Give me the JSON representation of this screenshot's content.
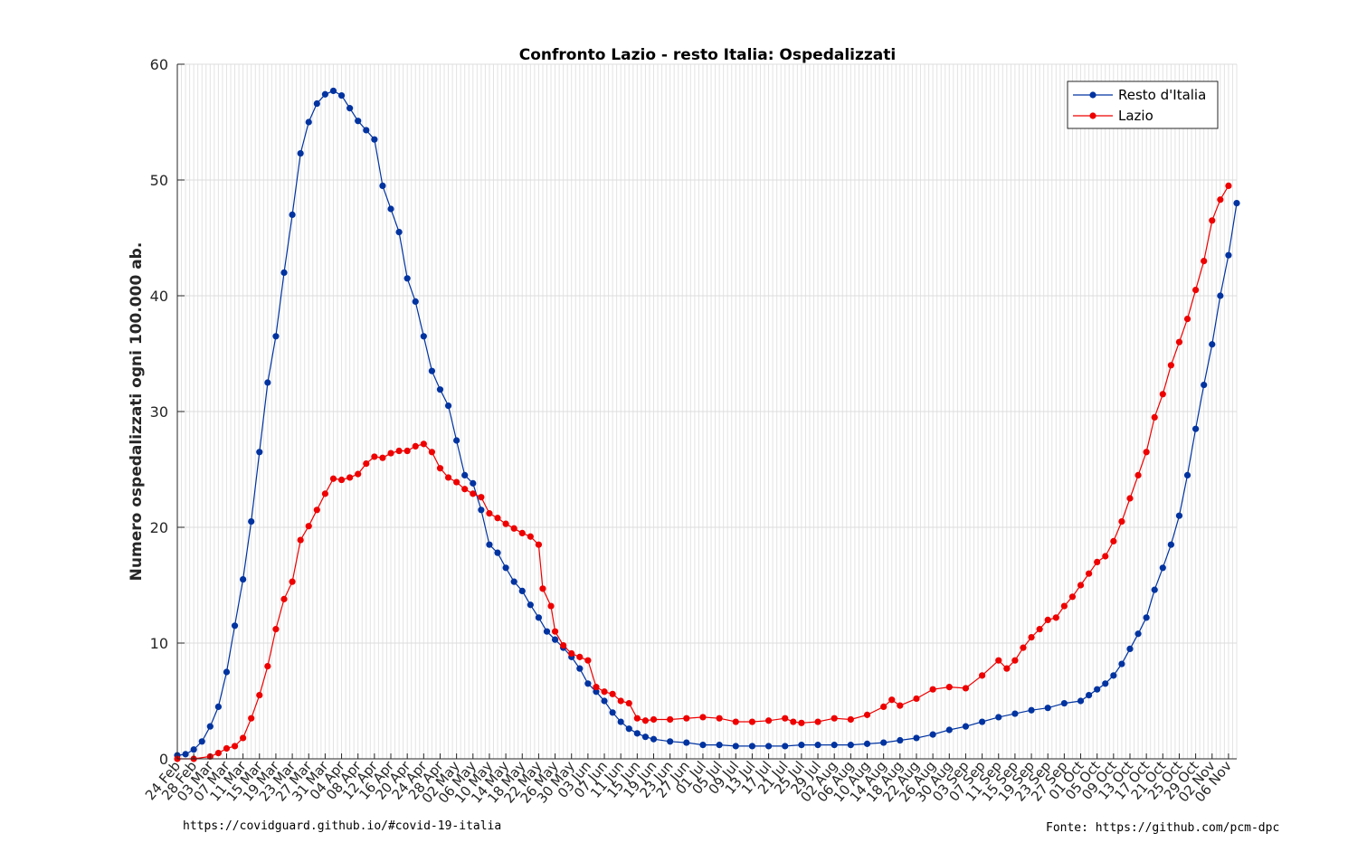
{
  "chart_data": {
    "type": "line",
    "title": "Confronto Lazio - resto Italia: Ospedalizzati",
    "xlabel": "",
    "ylabel": "Numero ospedalizzati ogni 100.000 ab.",
    "ylim": [
      0,
      60
    ],
    "yticks": [
      0,
      10,
      20,
      30,
      40,
      50,
      60
    ],
    "xlim_days": [
      0,
      258
    ],
    "grid": true,
    "legend_position": "top-right",
    "categories": [
      "24 Feb",
      "28 Feb",
      "03 Mar",
      "07 Mar",
      "11 Mar",
      "15 Mar",
      "19 Mar",
      "23 Mar",
      "27 Mar",
      "31 Mar",
      "04 Apr",
      "08 Apr",
      "12 Apr",
      "16 Apr",
      "20 Apr",
      "24 Apr",
      "28 Apr",
      "02 May",
      "06 May",
      "10 May",
      "14 May",
      "18 May",
      "22 May",
      "26 May",
      "30 May",
      "03 Jun",
      "07 Jun",
      "11 Jun",
      "15 Jun",
      "19 Jun",
      "23 Jun",
      "27 Jun",
      "01 Jul",
      "05 Jul",
      "09 Jul",
      "13 Jul",
      "17 Jul",
      "21 Jul",
      "25 Jul",
      "29 Jul",
      "02 Aug",
      "06 Aug",
      "10 Aug",
      "14 Aug",
      "18 Aug",
      "22 Aug",
      "26 Aug",
      "30 Aug",
      "03 Sep",
      "07 Sep",
      "11 Sep",
      "15 Sep",
      "19 Sep",
      "23 Sep",
      "27 Sep",
      "01 Oct",
      "05 Oct",
      "09 Oct",
      "13 Oct",
      "17 Oct",
      "21 Oct",
      "25 Oct",
      "29 Oct",
      "02 Nov",
      "06 Nov"
    ],
    "series": [
      {
        "name": "Resto d'Italia",
        "color": "#0033a0",
        "points": [
          [
            0,
            0.3
          ],
          [
            2,
            0.4
          ],
          [
            4,
            0.8
          ],
          [
            6,
            1.5
          ],
          [
            8,
            2.8
          ],
          [
            10,
            4.5
          ],
          [
            12,
            7.5
          ],
          [
            14,
            11.5
          ],
          [
            16,
            15.5
          ],
          [
            18,
            20.5
          ],
          [
            20,
            26.5
          ],
          [
            22,
            32.5
          ],
          [
            24,
            36.5
          ],
          [
            26,
            42
          ],
          [
            28,
            47
          ],
          [
            30,
            52.3
          ],
          [
            32,
            55
          ],
          [
            34,
            56.6
          ],
          [
            36,
            57.4
          ],
          [
            38,
            57.7
          ],
          [
            40,
            57.3
          ],
          [
            42,
            56.2
          ],
          [
            44,
            55.1
          ],
          [
            46,
            54.3
          ],
          [
            48,
            53.5
          ],
          [
            50,
            49.5
          ],
          [
            52,
            47.5
          ],
          [
            54,
            45.5
          ],
          [
            56,
            41.5
          ],
          [
            58,
            39.5
          ],
          [
            60,
            36.5
          ],
          [
            62,
            33.5
          ],
          [
            64,
            31.9
          ],
          [
            66,
            30.5
          ],
          [
            68,
            27.5
          ],
          [
            70,
            24.5
          ],
          [
            72,
            23.8
          ],
          [
            74,
            21.5
          ],
          [
            76,
            18.5
          ],
          [
            78,
            17.8
          ],
          [
            80,
            16.5
          ],
          [
            82,
            15.3
          ],
          [
            84,
            14.5
          ],
          [
            86,
            13.3
          ],
          [
            88,
            12.2
          ],
          [
            90,
            11
          ],
          [
            92,
            10.3
          ],
          [
            94,
            9.6
          ],
          [
            96,
            8.8
          ],
          [
            98,
            7.8
          ],
          [
            100,
            6.5
          ],
          [
            102,
            5.8
          ],
          [
            104,
            5
          ],
          [
            106,
            4
          ],
          [
            108,
            3.2
          ],
          [
            110,
            2.6
          ],
          [
            112,
            2.2
          ],
          [
            114,
            1.9
          ],
          [
            116,
            1.7
          ],
          [
            120,
            1.5
          ],
          [
            124,
            1.4
          ],
          [
            128,
            1.2
          ],
          [
            132,
            1.2
          ],
          [
            136,
            1.1
          ],
          [
            140,
            1.1
          ],
          [
            144,
            1.1
          ],
          [
            148,
            1.1
          ],
          [
            152,
            1.2
          ],
          [
            156,
            1.2
          ],
          [
            160,
            1.2
          ],
          [
            164,
            1.2
          ],
          [
            168,
            1.3
          ],
          [
            172,
            1.4
          ],
          [
            176,
            1.6
          ],
          [
            180,
            1.8
          ],
          [
            184,
            2.1
          ],
          [
            188,
            2.5
          ],
          [
            192,
            2.8
          ],
          [
            196,
            3.2
          ],
          [
            200,
            3.6
          ],
          [
            204,
            3.9
          ],
          [
            208,
            4.2
          ],
          [
            212,
            4.4
          ],
          [
            216,
            4.8
          ],
          [
            220,
            5
          ],
          [
            222,
            5.5
          ],
          [
            224,
            6
          ],
          [
            226,
            6.5
          ],
          [
            228,
            7.2
          ],
          [
            230,
            8.2
          ],
          [
            232,
            9.5
          ],
          [
            234,
            10.8
          ],
          [
            236,
            12.2
          ],
          [
            238,
            14.6
          ],
          [
            240,
            16.5
          ],
          [
            242,
            18.5
          ],
          [
            244,
            21
          ],
          [
            246,
            24.5
          ],
          [
            248,
            28.5
          ],
          [
            250,
            32.3
          ],
          [
            252,
            35.8
          ],
          [
            254,
            40
          ],
          [
            256,
            43.5
          ],
          [
            258,
            48
          ]
        ]
      },
      {
        "name": "Lazio",
        "color": "#ee0000",
        "points": [
          [
            0,
            0
          ],
          [
            4,
            0
          ],
          [
            8,
            0.2
          ],
          [
            10,
            0.5
          ],
          [
            12,
            0.9
          ],
          [
            14,
            1.1
          ],
          [
            16,
            1.8
          ],
          [
            18,
            3.5
          ],
          [
            20,
            5.5
          ],
          [
            22,
            8
          ],
          [
            24,
            11.2
          ],
          [
            26,
            13.8
          ],
          [
            28,
            15.3
          ],
          [
            30,
            18.9
          ],
          [
            32,
            20.1
          ],
          [
            34,
            21.5
          ],
          [
            36,
            22.9
          ],
          [
            38,
            24.2
          ],
          [
            40,
            24.1
          ],
          [
            42,
            24.3
          ],
          [
            44,
            24.6
          ],
          [
            46,
            25.5
          ],
          [
            48,
            26.1
          ],
          [
            50,
            26
          ],
          [
            52,
            26.4
          ],
          [
            54,
            26.6
          ],
          [
            56,
            26.6
          ],
          [
            58,
            27
          ],
          [
            60,
            27.2
          ],
          [
            62,
            26.5
          ],
          [
            64,
            25.1
          ],
          [
            66,
            24.3
          ],
          [
            68,
            23.9
          ],
          [
            70,
            23.3
          ],
          [
            72,
            22.9
          ],
          [
            74,
            22.6
          ],
          [
            76,
            21.2
          ],
          [
            78,
            20.8
          ],
          [
            80,
            20.3
          ],
          [
            82,
            19.9
          ],
          [
            84,
            19.5
          ],
          [
            86,
            19.2
          ],
          [
            88,
            18.5
          ],
          [
            89,
            14.7
          ],
          [
            91,
            13.2
          ],
          [
            92,
            11
          ],
          [
            94,
            9.8
          ],
          [
            96,
            9.1
          ],
          [
            98,
            8.8
          ],
          [
            100,
            8.5
          ],
          [
            102,
            6.2
          ],
          [
            104,
            5.8
          ],
          [
            106,
            5.6
          ],
          [
            108,
            5
          ],
          [
            110,
            4.8
          ],
          [
            112,
            3.5
          ],
          [
            114,
            3.3
          ],
          [
            116,
            3.4
          ],
          [
            120,
            3.4
          ],
          [
            124,
            3.5
          ],
          [
            128,
            3.6
          ],
          [
            132,
            3.5
          ],
          [
            136,
            3.2
          ],
          [
            140,
            3.2
          ],
          [
            144,
            3.3
          ],
          [
            148,
            3.5
          ],
          [
            150,
            3.2
          ],
          [
            152,
            3.1
          ],
          [
            156,
            3.2
          ],
          [
            160,
            3.5
          ],
          [
            164,
            3.4
          ],
          [
            168,
            3.8
          ],
          [
            172,
            4.5
          ],
          [
            174,
            5.1
          ],
          [
            176,
            4.6
          ],
          [
            180,
            5.2
          ],
          [
            184,
            6
          ],
          [
            188,
            6.2
          ],
          [
            192,
            6.1
          ],
          [
            196,
            7.2
          ],
          [
            200,
            8.5
          ],
          [
            202,
            7.8
          ],
          [
            204,
            8.5
          ],
          [
            206,
            9.6
          ],
          [
            208,
            10.5
          ],
          [
            210,
            11.2
          ],
          [
            212,
            12
          ],
          [
            214,
            12.2
          ],
          [
            216,
            13.2
          ],
          [
            218,
            14
          ],
          [
            220,
            15
          ],
          [
            222,
            16
          ],
          [
            224,
            17
          ],
          [
            226,
            17.5
          ],
          [
            228,
            18.8
          ],
          [
            230,
            20.5
          ],
          [
            232,
            22.5
          ],
          [
            234,
            24.5
          ],
          [
            236,
            26.5
          ],
          [
            238,
            29.5
          ],
          [
            240,
            31.5
          ],
          [
            242,
            34
          ],
          [
            244,
            36
          ],
          [
            246,
            38
          ],
          [
            248,
            40.5
          ],
          [
            250,
            43
          ],
          [
            252,
            46.5
          ],
          [
            254,
            48.3
          ],
          [
            256,
            49.5
          ]
        ]
      }
    ]
  },
  "footer": {
    "left": "https://covidguard.github.io/#covid-19-italia",
    "right": "Fonte: https://github.com/pcm-dpc"
  }
}
